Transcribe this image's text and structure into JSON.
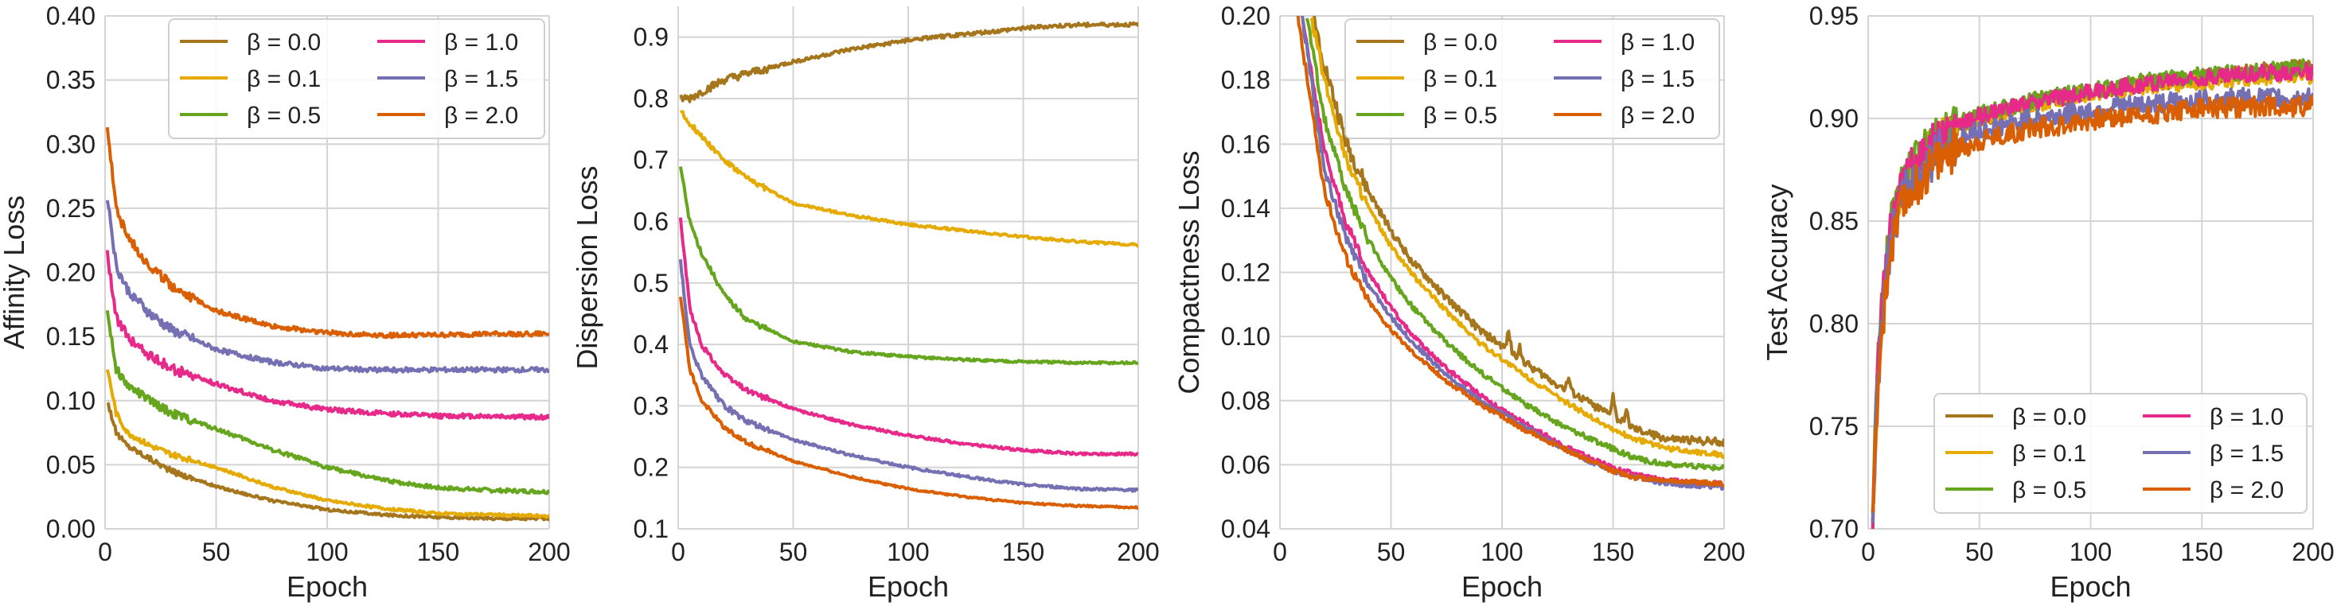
{
  "figure": {
    "series_colors": {
      "β = 0.0": "#a6761d",
      "β = 0.1": "#e6ab02",
      "β = 0.5": "#66a61e",
      "β = 1.0": "#e7298a",
      "β = 1.5": "#7570b3",
      "β = 2.0": "#d95f02"
    }
  },
  "chart_data": [
    {
      "type": "line",
      "xlabel": "Epoch",
      "ylabel": "Affinity Loss",
      "xlim": [
        0,
        200
      ],
      "ylim": [
        0.0,
        0.4
      ],
      "xticks": [
        0,
        50,
        100,
        150,
        200
      ],
      "yticks": [
        0.0,
        0.05,
        0.1,
        0.15,
        0.2,
        0.25,
        0.3,
        0.35,
        0.4
      ],
      "ytick_labels": [
        "0.00",
        "0.05",
        "0.10",
        "0.15",
        "0.20",
        "0.25",
        "0.30",
        "0.35",
        "0.40"
      ],
      "xtick_labels": [
        "0",
        "50",
        "100",
        "150",
        "200"
      ],
      "grid": true,
      "legend": "top-right",
      "legend_cols": 2,
      "series": [
        {
          "name": "β = 0.0",
          "x": [
            1,
            5,
            10,
            20,
            30,
            50,
            75,
            100,
            125,
            150,
            175,
            200
          ],
          "values": [
            0.1,
            0.075,
            0.065,
            0.055,
            0.045,
            0.033,
            0.022,
            0.015,
            0.011,
            0.009,
            0.008,
            0.008
          ],
          "noise": 0.001
        },
        {
          "name": "β = 0.1",
          "x": [
            1,
            5,
            10,
            20,
            30,
            50,
            75,
            100,
            125,
            150,
            175,
            200
          ],
          "values": [
            0.125,
            0.09,
            0.075,
            0.065,
            0.058,
            0.048,
            0.033,
            0.022,
            0.016,
            0.012,
            0.011,
            0.01
          ],
          "noise": 0.001
        },
        {
          "name": "β = 0.5",
          "x": [
            1,
            5,
            10,
            20,
            30,
            50,
            75,
            100,
            125,
            150,
            175,
            200
          ],
          "values": [
            0.17,
            0.125,
            0.112,
            0.1,
            0.09,
            0.078,
            0.062,
            0.048,
            0.038,
            0.032,
            0.03,
            0.029
          ],
          "noise": 0.0015
        },
        {
          "name": "β = 1.0",
          "x": [
            1,
            5,
            10,
            20,
            30,
            50,
            75,
            100,
            125,
            150,
            175,
            200
          ],
          "values": [
            0.215,
            0.165,
            0.15,
            0.135,
            0.125,
            0.113,
            0.1,
            0.093,
            0.09,
            0.088,
            0.088,
            0.087
          ],
          "noise": 0.0018
        },
        {
          "name": "β = 1.5",
          "x": [
            1,
            5,
            10,
            20,
            30,
            50,
            75,
            100,
            125,
            150,
            175,
            200
          ],
          "values": [
            0.26,
            0.205,
            0.187,
            0.168,
            0.155,
            0.14,
            0.13,
            0.125,
            0.124,
            0.124,
            0.124,
            0.124
          ],
          "noise": 0.0018
        },
        {
          "name": "β = 2.0",
          "x": [
            1,
            5,
            10,
            20,
            30,
            50,
            75,
            100,
            125,
            150,
            175,
            200
          ],
          "values": [
            0.315,
            0.25,
            0.228,
            0.205,
            0.19,
            0.17,
            0.158,
            0.153,
            0.151,
            0.151,
            0.152,
            0.152
          ],
          "noise": 0.0018
        }
      ]
    },
    {
      "type": "line",
      "xlabel": "Epoch",
      "ylabel": "Dispersion Loss",
      "xlim": [
        0,
        200
      ],
      "ylim": [
        0.1,
        0.95
      ],
      "xticks": [
        0,
        50,
        100,
        150,
        200
      ],
      "yticks": [
        0.1,
        0.2,
        0.3,
        0.4,
        0.5,
        0.6,
        0.7,
        0.8,
        0.9
      ],
      "ytick_labels": [
        "0.1",
        "0.2",
        "0.3",
        "0.4",
        "0.5",
        "0.6",
        "0.7",
        "0.8",
        "0.9"
      ],
      "xtick_labels": [
        "0",
        "50",
        "100",
        "150",
        "200"
      ],
      "grid": true,
      "legend": "none",
      "series": [
        {
          "name": "β = 0.0",
          "x": [
            1,
            5,
            10,
            20,
            30,
            50,
            75,
            100,
            125,
            140,
            150,
            175,
            200
          ],
          "values": [
            0.8,
            0.8,
            0.81,
            0.83,
            0.84,
            0.86,
            0.88,
            0.895,
            0.905,
            0.91,
            0.915,
            0.92,
            0.92
          ],
          "noise": 0.003
        },
        {
          "name": "β = 0.1",
          "x": [
            1,
            5,
            10,
            20,
            30,
            50,
            75,
            100,
            125,
            150,
            175,
            200
          ],
          "values": [
            0.78,
            0.76,
            0.74,
            0.7,
            0.67,
            0.63,
            0.61,
            0.595,
            0.585,
            0.575,
            0.567,
            0.562
          ],
          "noise": 0.002
        },
        {
          "name": "β = 0.5",
          "x": [
            1,
            5,
            10,
            20,
            30,
            50,
            75,
            100,
            125,
            150,
            175,
            200
          ],
          "values": [
            0.69,
            0.6,
            0.55,
            0.48,
            0.44,
            0.405,
            0.388,
            0.38,
            0.375,
            0.372,
            0.37,
            0.37
          ],
          "noise": 0.002
        },
        {
          "name": "β = 1.0",
          "x": [
            1,
            5,
            10,
            20,
            30,
            50,
            75,
            100,
            125,
            150,
            175,
            200
          ],
          "values": [
            0.605,
            0.46,
            0.4,
            0.35,
            0.325,
            0.295,
            0.27,
            0.252,
            0.238,
            0.228,
            0.222,
            0.222
          ],
          "noise": 0.002
        },
        {
          "name": "β = 1.5",
          "x": [
            1,
            5,
            10,
            20,
            30,
            50,
            75,
            100,
            125,
            150,
            175,
            200
          ],
          "values": [
            0.535,
            0.4,
            0.35,
            0.3,
            0.275,
            0.245,
            0.22,
            0.2,
            0.185,
            0.172,
            0.165,
            0.163
          ],
          "noise": 0.002
        },
        {
          "name": "β = 2.0",
          "x": [
            1,
            5,
            10,
            20,
            30,
            50,
            75,
            100,
            125,
            150,
            175,
            200
          ],
          "values": [
            0.48,
            0.36,
            0.31,
            0.265,
            0.24,
            0.21,
            0.185,
            0.165,
            0.152,
            0.142,
            0.137,
            0.135
          ],
          "noise": 0.0015
        }
      ]
    },
    {
      "type": "line",
      "xlabel": "Epoch",
      "ylabel": "Compactness Loss",
      "xlim": [
        0,
        200
      ],
      "ylim": [
        0.04,
        0.2
      ],
      "xticks": [
        0,
        50,
        100,
        150,
        200
      ],
      "yticks": [
        0.04,
        0.06,
        0.08,
        0.1,
        0.12,
        0.14,
        0.16,
        0.18,
        0.2
      ],
      "ytick_labels": [
        "0.04",
        "0.06",
        "0.08",
        "0.10",
        "0.12",
        "0.14",
        "0.16",
        "0.18",
        "0.20"
      ],
      "xtick_labels": [
        "0",
        "50",
        "100",
        "150",
        "200"
      ],
      "grid": true,
      "legend": "top-right",
      "legend_cols": 2,
      "series": [
        {
          "name": "β = 0.0",
          "x": [
            15,
            20,
            30,
            40,
            50,
            60,
            75,
            90,
            100,
            110,
            125,
            140,
            150,
            160,
            175,
            200
          ],
          "values": [
            0.2,
            0.185,
            0.16,
            0.145,
            0.133,
            0.123,
            0.112,
            0.102,
            0.097,
            0.092,
            0.085,
            0.079,
            0.075,
            0.071,
            0.068,
            0.067
          ],
          "noise": 0.0012,
          "spikes": [
            [
              103,
              0.006
            ],
            [
              108,
              0.004
            ],
            [
              130,
              0.004
            ],
            [
              150,
              0.007
            ],
            [
              156,
              0.004
            ]
          ]
        },
        {
          "name": "β = 0.1",
          "x": [
            14,
            20,
            30,
            40,
            50,
            60,
            75,
            90,
            100,
            110,
            125,
            140,
            150,
            160,
            175,
            200
          ],
          "values": [
            0.2,
            0.18,
            0.155,
            0.14,
            0.128,
            0.119,
            0.108,
            0.098,
            0.093,
            0.088,
            0.081,
            0.075,
            0.071,
            0.068,
            0.065,
            0.063
          ],
          "noise": 0.0008
        },
        {
          "name": "β = 0.5",
          "x": [
            12,
            20,
            30,
            40,
            50,
            60,
            75,
            90,
            100,
            110,
            125,
            140,
            150,
            160,
            175,
            200
          ],
          "values": [
            0.2,
            0.168,
            0.145,
            0.13,
            0.118,
            0.109,
            0.098,
            0.089,
            0.084,
            0.079,
            0.073,
            0.068,
            0.065,
            0.062,
            0.06,
            0.059
          ],
          "noise": 0.0008
        },
        {
          "name": "β = 1.0",
          "x": [
            10,
            20,
            30,
            40,
            50,
            60,
            75,
            90,
            100,
            110,
            125,
            140,
            150,
            160,
            175,
            200
          ],
          "values": [
            0.2,
            0.158,
            0.135,
            0.12,
            0.109,
            0.1,
            0.09,
            0.082,
            0.077,
            0.073,
            0.067,
            0.062,
            0.059,
            0.057,
            0.055,
            0.054
          ],
          "noise": 0.0007
        },
        {
          "name": "β = 1.5",
          "x": [
            10,
            20,
            30,
            40,
            50,
            60,
            75,
            90,
            100,
            110,
            125,
            140,
            150,
            160,
            175,
            200
          ],
          "values": [
            0.2,
            0.152,
            0.13,
            0.116,
            0.106,
            0.098,
            0.088,
            0.08,
            0.076,
            0.072,
            0.066,
            0.061,
            0.058,
            0.056,
            0.054,
            0.053
          ],
          "noise": 0.0007
        },
        {
          "name": "β = 2.0",
          "x": [
            8,
            20,
            30,
            40,
            50,
            60,
            75,
            90,
            100,
            110,
            125,
            140,
            150,
            160,
            175,
            200
          ],
          "values": [
            0.2,
            0.145,
            0.124,
            0.111,
            0.102,
            0.095,
            0.086,
            0.079,
            0.075,
            0.071,
            0.066,
            0.061,
            0.058,
            0.056,
            0.055,
            0.054
          ],
          "noise": 0.0007
        }
      ]
    },
    {
      "type": "line",
      "xlabel": "Epoch",
      "ylabel": "Test Accuracy",
      "xlim": [
        0,
        200
      ],
      "ylim": [
        0.7,
        0.95
      ],
      "xticks": [
        0,
        50,
        100,
        150,
        200
      ],
      "yticks": [
        0.7,
        0.75,
        0.8,
        0.85,
        0.9,
        0.95
      ],
      "ytick_labels": [
        "0.70",
        "0.75",
        "0.80",
        "0.85",
        "0.90",
        "0.95"
      ],
      "xtick_labels": [
        "0",
        "50",
        "100",
        "150",
        "200"
      ],
      "grid": true,
      "legend": "lower-right",
      "legend_cols": 2,
      "series": [
        {
          "name": "β = 0.0",
          "x": [
            2,
            4,
            6,
            8,
            10,
            15,
            20,
            30,
            40,
            50,
            75,
            100,
            125,
            150,
            175,
            200
          ],
          "values": [
            0.7,
            0.76,
            0.8,
            0.82,
            0.845,
            0.865,
            0.875,
            0.888,
            0.895,
            0.9,
            0.908,
            0.913,
            0.917,
            0.92,
            0.923,
            0.925
          ],
          "noise": 0.004
        },
        {
          "name": "β = 0.1",
          "x": [
            2,
            4,
            6,
            8,
            10,
            15,
            20,
            30,
            40,
            50,
            75,
            100,
            125,
            150,
            175,
            200
          ],
          "values": [
            0.7,
            0.77,
            0.805,
            0.825,
            0.845,
            0.866,
            0.877,
            0.889,
            0.896,
            0.9,
            0.907,
            0.912,
            0.916,
            0.918,
            0.92,
            0.921
          ],
          "noise": 0.004
        },
        {
          "name": "β = 0.5",
          "x": [
            2,
            4,
            6,
            8,
            10,
            15,
            20,
            30,
            40,
            50,
            75,
            100,
            125,
            150,
            175,
            200
          ],
          "values": [
            0.7,
            0.78,
            0.81,
            0.83,
            0.848,
            0.868,
            0.879,
            0.891,
            0.898,
            0.902,
            0.909,
            0.914,
            0.918,
            0.921,
            0.923,
            0.925
          ],
          "noise": 0.004
        },
        {
          "name": "β = 1.0",
          "x": [
            2,
            4,
            6,
            8,
            10,
            15,
            20,
            30,
            40,
            50,
            75,
            100,
            125,
            150,
            175,
            200
          ],
          "values": [
            0.7,
            0.775,
            0.808,
            0.828,
            0.846,
            0.866,
            0.878,
            0.89,
            0.897,
            0.901,
            0.908,
            0.913,
            0.917,
            0.92,
            0.922,
            0.923
          ],
          "noise": 0.004
        },
        {
          "name": "β = 1.5",
          "x": [
            2,
            4,
            6,
            8,
            10,
            15,
            20,
            30,
            40,
            50,
            75,
            100,
            125,
            150,
            175,
            200
          ],
          "values": [
            0.7,
            0.765,
            0.8,
            0.82,
            0.84,
            0.86,
            0.87,
            0.882,
            0.889,
            0.894,
            0.9,
            0.904,
            0.907,
            0.909,
            0.91,
            0.91
          ],
          "noise": 0.005
        },
        {
          "name": "β = 2.0",
          "x": [
            2,
            4,
            6,
            8,
            10,
            15,
            20,
            30,
            40,
            50,
            75,
            100,
            125,
            150,
            175,
            200
          ],
          "values": [
            0.7,
            0.76,
            0.795,
            0.815,
            0.835,
            0.855,
            0.866,
            0.878,
            0.885,
            0.889,
            0.895,
            0.899,
            0.902,
            0.905,
            0.906,
            0.906
          ],
          "noise": 0.005
        }
      ]
    }
  ]
}
